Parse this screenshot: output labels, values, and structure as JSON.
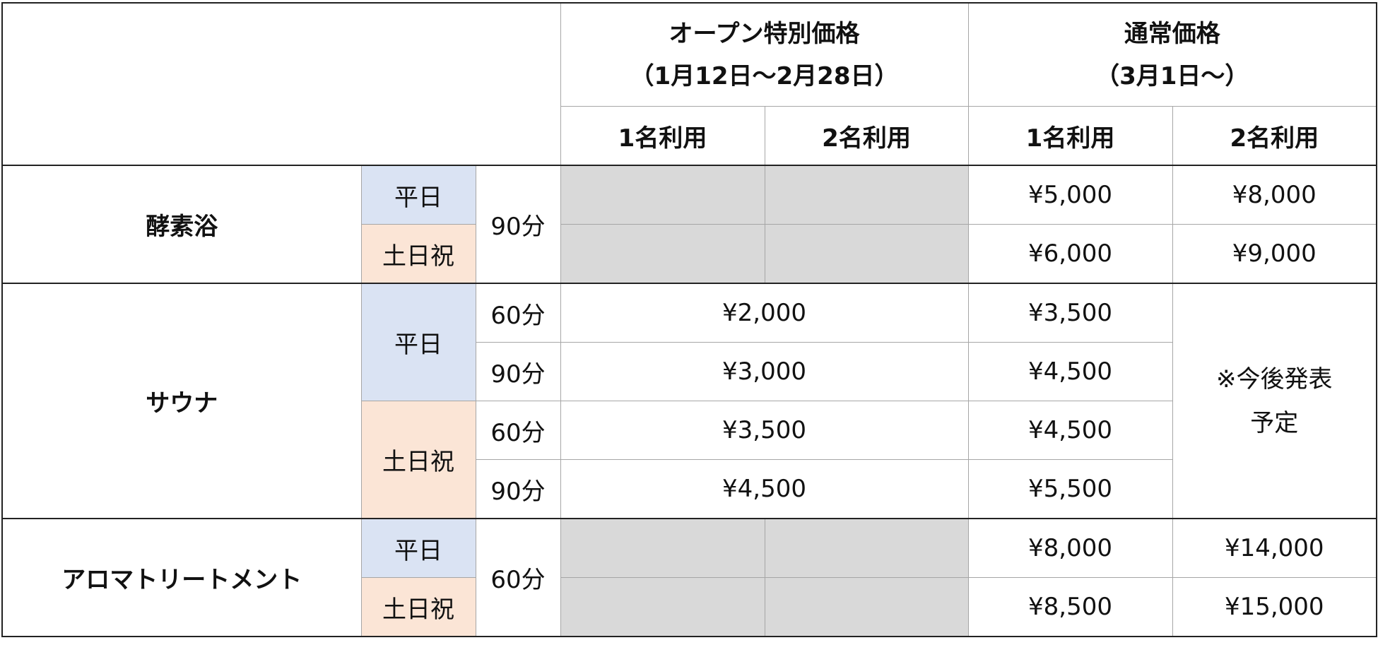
{
  "header": {
    "open_price": {
      "title": "オープン特別価格",
      "period": "（1月12日～2月28日）"
    },
    "regular_price": {
      "title": "通常価格",
      "period": "（3月1日～）"
    },
    "sub": [
      "1名利用",
      "2名利用",
      "1名利用",
      "2名利用"
    ]
  },
  "day_types": {
    "weekday": "平日",
    "weekend": "土日祝"
  },
  "services": {
    "enzyme_bath": {
      "name": "酵素浴",
      "duration": "90分",
      "weekday": {
        "regular_1": "¥5,000",
        "regular_2": "¥8,000"
      },
      "weekend": {
        "regular_1": "¥6,000",
        "regular_2": "¥9,000"
      }
    },
    "sauna": {
      "name": "サウナ",
      "weekday_60": {
        "duration": "60分",
        "open": "¥2,000",
        "regular_1": "¥3,500"
      },
      "weekday_90": {
        "duration": "90分",
        "open": "¥3,000",
        "regular_1": "¥4,500"
      },
      "weekend_60": {
        "duration": "60分",
        "open": "¥3,500",
        "regular_1": "¥4,500"
      },
      "weekend_90": {
        "duration": "90分",
        "open": "¥4,500",
        "regular_1": "¥5,500"
      },
      "regular_2_note": [
        "※今後発表",
        "予定"
      ]
    },
    "aroma": {
      "name": "アロマトリートメント",
      "duration": "60分",
      "weekday": {
        "regular_1": "¥8,000",
        "regular_2": "¥14,000"
      },
      "weekend": {
        "regular_1": "¥8,500",
        "regular_2": "¥15,000"
      }
    }
  },
  "colors": {
    "weekday_bg": "#dae3f3",
    "weekend_bg": "#fbe5d6",
    "unavailable_bg": "#d9d9d9"
  }
}
